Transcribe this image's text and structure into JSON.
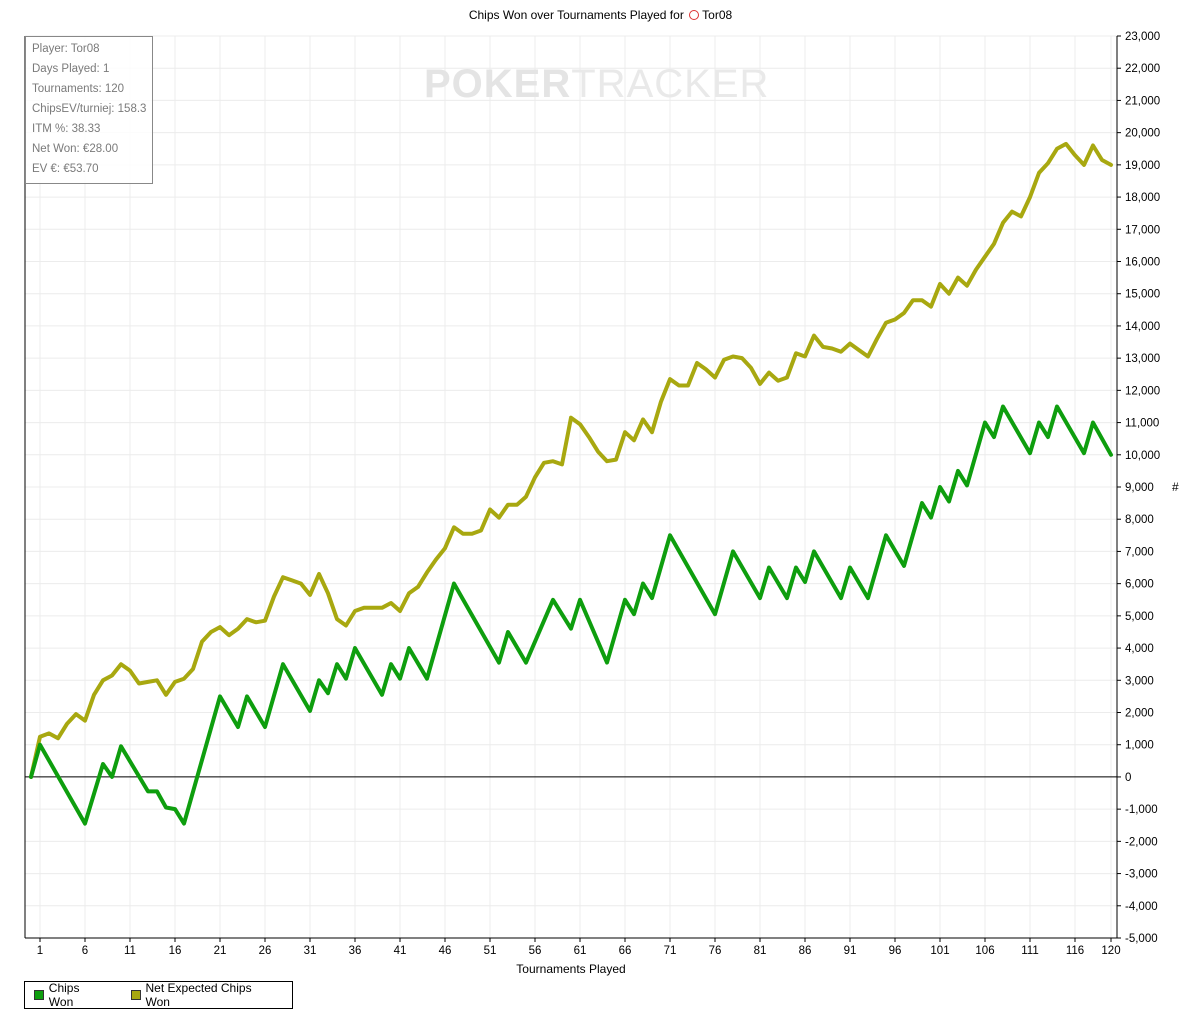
{
  "chart_data": {
    "type": "line",
    "title_prefix": "Chips Won over Tournaments Played for",
    "title_player": "Tor08",
    "xlabel": "Tournaments Played",
    "ylabel": "#",
    "xlim": [
      0,
      120
    ],
    "ylim": [
      -5000,
      23000
    ],
    "x_ticks": [
      1,
      6,
      11,
      16,
      21,
      26,
      31,
      36,
      41,
      46,
      51,
      56,
      61,
      66,
      71,
      76,
      81,
      86,
      91,
      96,
      101,
      106,
      111,
      116,
      120
    ],
    "y_ticks": [
      -5000,
      -4000,
      -3000,
      -2000,
      -1000,
      0,
      1000,
      2000,
      3000,
      4000,
      5000,
      6000,
      7000,
      8000,
      9000,
      10000,
      11000,
      12000,
      13000,
      14000,
      15000,
      16000,
      17000,
      18000,
      19000,
      20000,
      21000,
      22000,
      23000
    ],
    "grid": true,
    "legend_position": "bottom-left",
    "series": [
      {
        "name": "Chips Won",
        "color": "#0e9e0e",
        "x": [
          0,
          1,
          6,
          8,
          9,
          10,
          13,
          14,
          15,
          16,
          17,
          21,
          23,
          24,
          26,
          28,
          31,
          32,
          33,
          34,
          35,
          36,
          39,
          40,
          41,
          42,
          44,
          47,
          52,
          53,
          55,
          58,
          60,
          61,
          64,
          66,
          67,
          68,
          69,
          71,
          76,
          78,
          81,
          82,
          84,
          85,
          86,
          87,
          90,
          91,
          93,
          95,
          97,
          99,
          100,
          101,
          102,
          103,
          104,
          106,
          107,
          108,
          111,
          112,
          113,
          114,
          117,
          118,
          120
        ],
        "y": [
          0,
          1000,
          -1450,
          400,
          0,
          950,
          -450,
          -450,
          -950,
          -1000,
          -1450,
          2500,
          1550,
          2500,
          1550,
          3500,
          2050,
          3000,
          2600,
          3500,
          3050,
          4000,
          2550,
          3500,
          3050,
          4000,
          3050,
          6000,
          3550,
          4500,
          3550,
          5500,
          4600,
          5500,
          3550,
          5500,
          5050,
          6000,
          5550,
          7500,
          5050,
          7000,
          5550,
          6500,
          5550,
          6500,
          6050,
          7000,
          5550,
          6500,
          5550,
          7500,
          6550,
          8500,
          8050,
          9000,
          8550,
          9500,
          9050,
          11000,
          10550,
          11500,
          10050,
          11000,
          10550,
          11500,
          10050,
          11000,
          10000
        ]
      },
      {
        "name": "Net Expected Chips Won",
        "color": "#a8a810",
        "x": [
          0,
          1,
          2,
          3,
          4,
          5,
          6,
          7,
          8,
          9,
          10,
          11,
          12,
          13,
          14,
          15,
          16,
          17,
          18,
          19,
          20,
          21,
          22,
          23,
          24,
          25,
          26,
          27,
          28,
          29,
          30,
          31,
          32,
          33,
          34,
          35,
          36,
          37,
          38,
          39,
          40,
          41,
          42,
          43,
          44,
          45,
          46,
          47,
          48,
          49,
          50,
          51,
          52,
          53,
          54,
          55,
          56,
          57,
          58,
          59,
          60,
          61,
          62,
          63,
          64,
          65,
          66,
          67,
          68,
          69,
          70,
          71,
          72,
          73,
          74,
          75,
          76,
          77,
          78,
          79,
          80,
          81,
          82,
          83,
          84,
          85,
          86,
          87,
          88,
          89,
          90,
          91,
          92,
          93,
          94,
          95,
          96,
          97,
          98,
          99,
          100,
          101,
          102,
          103,
          104,
          105,
          106,
          107,
          108,
          109,
          110,
          111,
          112,
          113,
          114,
          115,
          116,
          117,
          118,
          119,
          120
        ],
        "y": [
          0,
          1250,
          1350,
          1200,
          1650,
          1950,
          1750,
          2550,
          3000,
          3150,
          3500,
          3300,
          2900,
          2950,
          3000,
          2550,
          2950,
          3050,
          3350,
          4200,
          4500,
          4650,
          4400,
          4600,
          4900,
          4800,
          4850,
          5600,
          6200,
          6100,
          6000,
          5650,
          6300,
          5700,
          4900,
          4700,
          5150,
          5250,
          5250,
          5250,
          5400,
          5150,
          5700,
          5900,
          6350,
          6750,
          7100,
          7750,
          7550,
          7550,
          7650,
          8300,
          8050,
          8450,
          8450,
          8700,
          9300,
          9750,
          9800,
          9700,
          11150,
          10950,
          10550,
          10100,
          9800,
          9850,
          10700,
          10450,
          11100,
          10700,
          11650,
          12350,
          12150,
          12150,
          12850,
          12650,
          12400,
          12950,
          13050,
          13000,
          12700,
          12200,
          12550,
          12300,
          12400,
          13150,
          13050,
          13700,
          13350,
          13300,
          13200,
          13450,
          13250,
          13050,
          13600,
          14100,
          14200,
          14400,
          14800,
          14800,
          14600,
          15300,
          15000,
          15500,
          15250,
          15750,
          16150,
          16550,
          17200,
          17550,
          17400,
          18000,
          18750,
          19050,
          19500,
          19650,
          19300,
          19000,
          19600,
          19150,
          19000
        ]
      }
    ]
  },
  "stats": [
    "Player: Tor08",
    "Days Played: 1",
    "Tournaments: 120",
    "ChipsEV/turniej: 158.3",
    "ITM %: 38.33",
    "Net Won: €28.00",
    "EV €: €53.70"
  ],
  "watermark": {
    "part1": "POKER",
    "part2": "TRACKER"
  },
  "legend": {
    "item1": "Chips Won",
    "item2": "Net Expected Chips Won"
  }
}
